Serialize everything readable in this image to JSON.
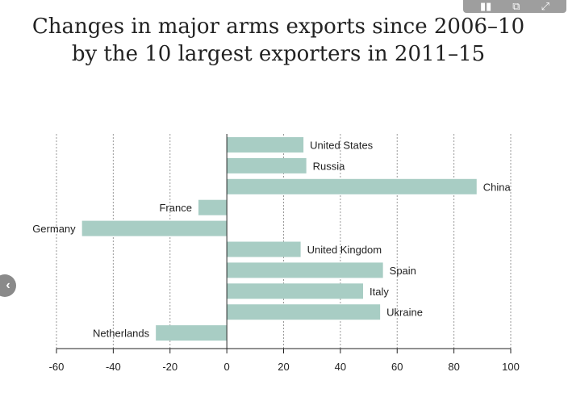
{
  "toolbar": {
    "icons": [
      "chart-view-icon",
      "share-icon",
      "expand-icon"
    ]
  },
  "title": {
    "line1": "Changes in major arms exports since 2006–10",
    "line2": "by the 10 largest exporters in 2011–15"
  },
  "chart_data": {
    "type": "bar",
    "orientation": "horizontal",
    "title": "Changes in major arms exports since 2006–10 by the 10 largest exporters in 2011–15",
    "categories": [
      "United States",
      "Russia",
      "China",
      "France",
      "Germany",
      "United Kingdom",
      "Spain",
      "Italy",
      "Ukraine",
      "Netherlands"
    ],
    "values": [
      27,
      28,
      88,
      -10,
      -51,
      26,
      55,
      48,
      54,
      -25
    ],
    "xlim": [
      -60,
      100
    ],
    "xticks": [
      -60,
      -40,
      -20,
      0,
      20,
      40,
      60,
      80,
      100
    ],
    "xlabel": "",
    "ylabel": "",
    "grid": "vertical-dotted",
    "bar_color": "#a8cdc4"
  }
}
